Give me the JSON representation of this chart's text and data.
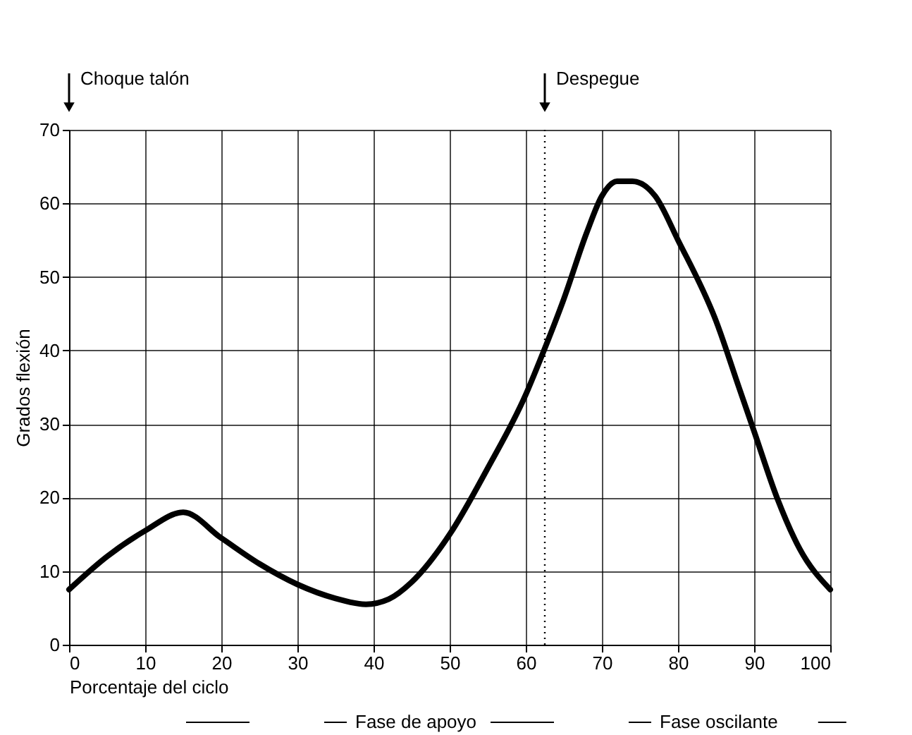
{
  "chart_data": {
    "type": "line",
    "xlabel": "Porcentaje del ciclo",
    "ylabel": "Grados flexión",
    "x": [
      0,
      5,
      10,
      15,
      20,
      25,
      30,
      35,
      39,
      42,
      45,
      50,
      55,
      60,
      62,
      65,
      68,
      70,
      72,
      74,
      77,
      80,
      85,
      88,
      90,
      93,
      96,
      100
    ],
    "series": [
      {
        "color": "#000000",
        "values": [
          7.5,
          12,
          15.5,
          18,
          14.5,
          11,
          8.2,
          6.3,
          5.5,
          6.2,
          8.5,
          15,
          24,
          34,
          39,
          47,
          56,
          61,
          63,
          63,
          61,
          55,
          44,
          35,
          29,
          20,
          13,
          7.5
        ]
      }
    ],
    "xlim": [
      0,
      100
    ],
    "xticks": [
      0,
      10,
      20,
      30,
      40,
      50,
      60,
      70,
      80,
      90,
      100
    ],
    "ylim": [
      0,
      70
    ],
    "yticks": [
      0,
      10,
      20,
      30,
      40,
      50,
      60,
      70
    ],
    "grid": true,
    "marker": "none",
    "line_style": "solid",
    "ref_lines": [
      {
        "axis": "x",
        "value": 62.5,
        "label": "Despegue",
        "line_style": "dotted",
        "color": "#000000"
      }
    ],
    "annotations": [
      "Choque talón",
      "Fase de apoyo",
      "Fase oscilante"
    ]
  }
}
